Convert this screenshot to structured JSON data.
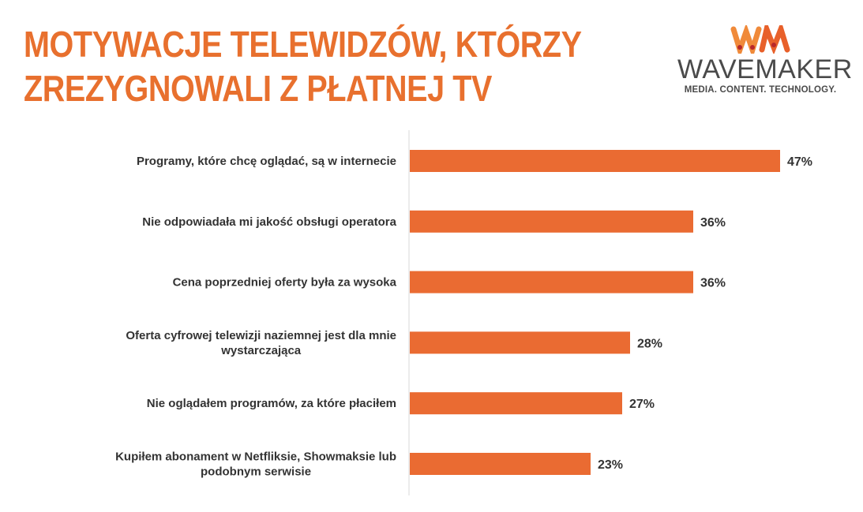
{
  "title": {
    "line1": "MOTYWACJE TELEWIDZÓW, KTÓRZY",
    "line2": "ZREZYGNOWALI Z PŁATNEJ TV"
  },
  "logo": {
    "mark": "WM",
    "name": "WAVEMAKER",
    "tagline": "MEDIA. CONTENT. TECHNOLOGY."
  },
  "colors": {
    "bar": "#EA6B32",
    "title": "#E8702E",
    "text": "#333333",
    "axis": "#d9d9d9"
  },
  "chart_data": {
    "type": "bar",
    "orientation": "horizontal",
    "categories": [
      [
        "Programy, które chcę oglądać, są w internecie"
      ],
      [
        "Nie odpowiadała mi jakość obsługi operatora"
      ],
      [
        "Cena poprzedniej oferty była za wysoka"
      ],
      [
        "Oferta cyfrowej telewizji naziemnej jest dla mnie",
        "wystarczająca"
      ],
      [
        "Nie oglądałem programów, za które płaciłem"
      ],
      [
        "Kupiłem abonament w Netfliksie, Showmaksie lub",
        "podobnym serwisie"
      ]
    ],
    "values": [
      47,
      36,
      36,
      28,
      27,
      23
    ],
    "data_labels": [
      "47%",
      "36%",
      "36%",
      "28%",
      "27%",
      "23%"
    ],
    "xlim": [
      0,
      50
    ],
    "grid": false
  }
}
